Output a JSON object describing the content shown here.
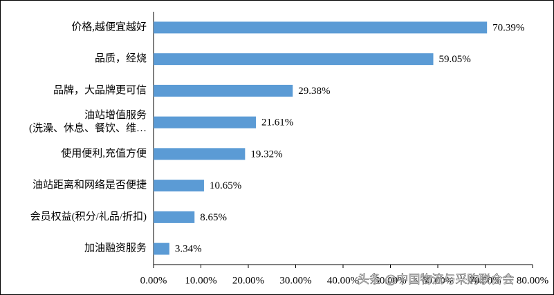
{
  "chart_data": {
    "type": "barh",
    "categories": [
      "价格,越便宜越好",
      "品质，经烧",
      "品牌，大品牌更可信",
      [
        "油站增值服务",
        "(洗澡、休息、餐饮、维…"
      ],
      "使用便利,充值方便",
      "油站距离和网络是否便捷",
      "会员权益(积分/礼品/折扣)",
      "加油融资服务"
    ],
    "values": [
      70.39,
      59.05,
      29.38,
      21.61,
      19.32,
      10.65,
      8.65,
      3.34
    ],
    "value_labels": [
      "70.39%",
      "59.05%",
      "29.38%",
      "21.61%",
      "19.32%",
      "10.65%",
      "8.65%",
      "3.34%"
    ],
    "color": "#5b9bd5",
    "xlim": [
      0,
      80
    ],
    "xticks": [
      {
        "value": 0,
        "label": "0.00%"
      },
      {
        "value": 10,
        "label": "10.00%"
      },
      {
        "value": 20,
        "label": "20.00%"
      },
      {
        "value": 30,
        "label": "30.00%"
      },
      {
        "value": 40,
        "label": "40.00%"
      },
      {
        "value": 50,
        "label": "50.00%"
      },
      {
        "value": 60,
        "label": "60.00%"
      },
      {
        "value": 70,
        "label": "70.00%"
      },
      {
        "value": 80,
        "label": "80.00%"
      }
    ],
    "watermark": "头条 @中国物流与采购联合会"
  }
}
